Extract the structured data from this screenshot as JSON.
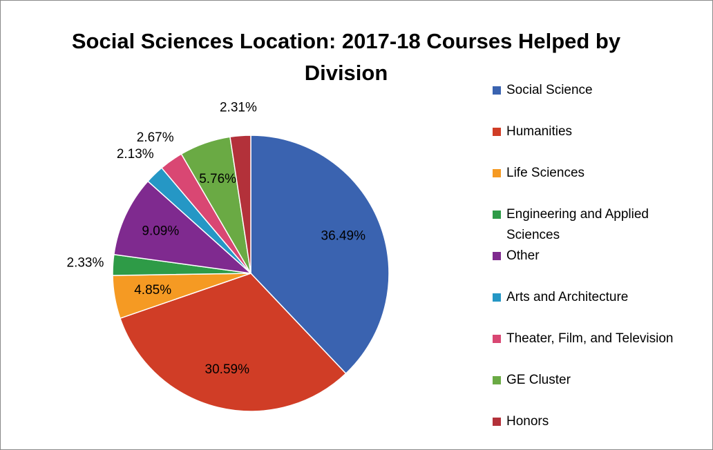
{
  "chart_data": {
    "type": "pie",
    "title": "Social Sciences Location: 2017-18 Courses Helped by Division",
    "categories": [
      "Social Science",
      "Humanities",
      "Life Sciences",
      "Engineering and Applied Sciences",
      "Other",
      "Arts and Architecture",
      "Theater, Film, and Television",
      "GE Cluster",
      "Honors"
    ],
    "values": [
      36.49,
      30.59,
      4.85,
      2.33,
      9.09,
      2.13,
      2.67,
      5.76,
      2.31
    ],
    "value_labels": [
      "36.49%",
      "30.59%",
      "4.85%",
      "2.33%",
      "9.09%",
      "2.13%",
      "2.67%",
      "5.76%",
      "2.31%"
    ],
    "colors": [
      "#3a63b0",
      "#d03d26",
      "#f59a23",
      "#2e9b47",
      "#7f2a8f",
      "#2597c5",
      "#d94773",
      "#6aaa44",
      "#b3313a"
    ],
    "legend": "right"
  }
}
